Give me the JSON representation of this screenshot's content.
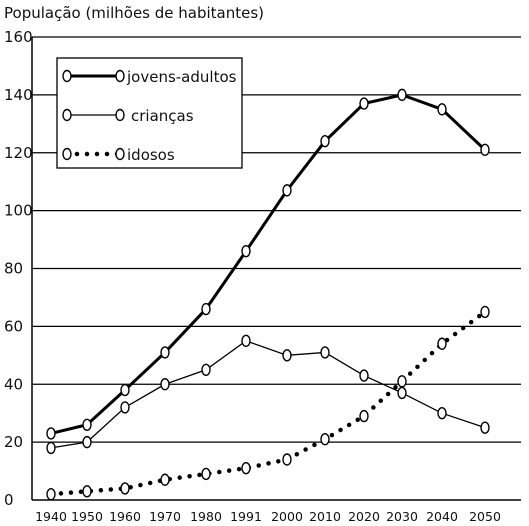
{
  "chart_data": {
    "type": "line",
    "ylabel": "População (milhões de habitantes)",
    "x": [
      "1940",
      "1950",
      "1960",
      "1970",
      "1980",
      "1991",
      "2000",
      "2010",
      "2020",
      "2030",
      "2040",
      "2050"
    ],
    "y_ticks": [
      "0",
      "20",
      "40",
      "60",
      "80",
      "100",
      "120",
      "140",
      "160"
    ],
    "ylim": [
      0,
      160
    ],
    "grid": "horizontal",
    "legend_position": "top-left",
    "series": [
      {
        "name": "jovens-adultos",
        "style": "thick-solid",
        "values": [
          23,
          26,
          38,
          51,
          66,
          86,
          107,
          124,
          137,
          140,
          135,
          121
        ]
      },
      {
        "name": "crianças",
        "style": "thin-solid",
        "values": [
          18,
          20,
          32,
          40,
          45,
          55,
          50,
          51,
          43,
          37,
          30,
          25
        ]
      },
      {
        "name": "idosos",
        "style": "dotted",
        "values": [
          2,
          3,
          4,
          7,
          9,
          11,
          14,
          21,
          29,
          41,
          54,
          65
        ]
      }
    ]
  }
}
